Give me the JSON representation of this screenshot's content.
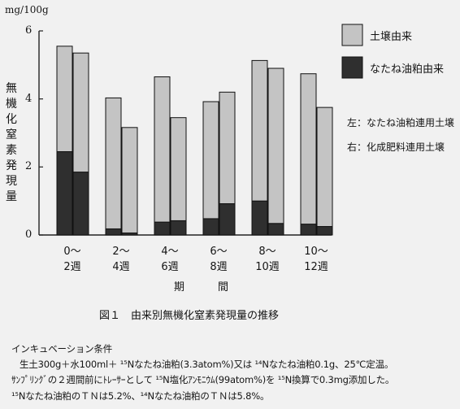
{
  "chart_data": {
    "type": "bar",
    "y_unit": "mg/100g",
    "ylabel": "無機化窒素発現量",
    "xlabel": "期　間",
    "yticks": [
      "0",
      "2",
      "4",
      "6"
    ],
    "ylim": [
      0,
      6
    ],
    "categories": [
      "0〜\n2週",
      "2〜\n4週",
      "4〜\n6週",
      "6〜\n8週",
      "8〜\n10週",
      "10〜\n12週"
    ],
    "stacked": true,
    "paired_bars_per_category": [
      "left",
      "right"
    ],
    "series": [
      {
        "name": "なたね油粕由来",
        "color": "#2f2f2f",
        "left_values": [
          2.45,
          0.18,
          0.38,
          0.48,
          1.0,
          0.32
        ],
        "right_values": [
          1.85,
          0.06,
          0.42,
          0.92,
          0.34,
          0.25
        ]
      },
      {
        "name": "土壌由来",
        "color": "#c4c4c4",
        "left_values": [
          3.1,
          3.85,
          4.27,
          3.44,
          4.13,
          4.42
        ],
        "right_values": [
          3.5,
          3.1,
          3.03,
          3.28,
          4.56,
          3.5
        ]
      }
    ],
    "legend_position": "right",
    "notes": [
      "左：なたね油粕連用土壌",
      "右：化成肥料連用土壌"
    ],
    "grid": false
  },
  "caption": "図１　由来別無機化窒素発現量の推移",
  "conditions": {
    "title": "インキュベーション条件",
    "lines": [
      "生土300g＋水100ml＋ ¹⁵Nなたね油粕(3.3atom%)又は ¹⁴Nなたね油粕0.1g、25℃定温。",
      "ｻﾝﾌﾟﾘﾝｸﾞの２週間前にﾄﾚｰｻｰとして ¹⁵N塩化ｱﾝﾓﾆｳﾑ(99atom%)を ¹⁵N換算で0.3mg添加した。",
      "¹⁵Nなたね油粕のＴＮは5.2%、¹⁴Nなたね油粕のＴＮは5.8%。"
    ]
  }
}
